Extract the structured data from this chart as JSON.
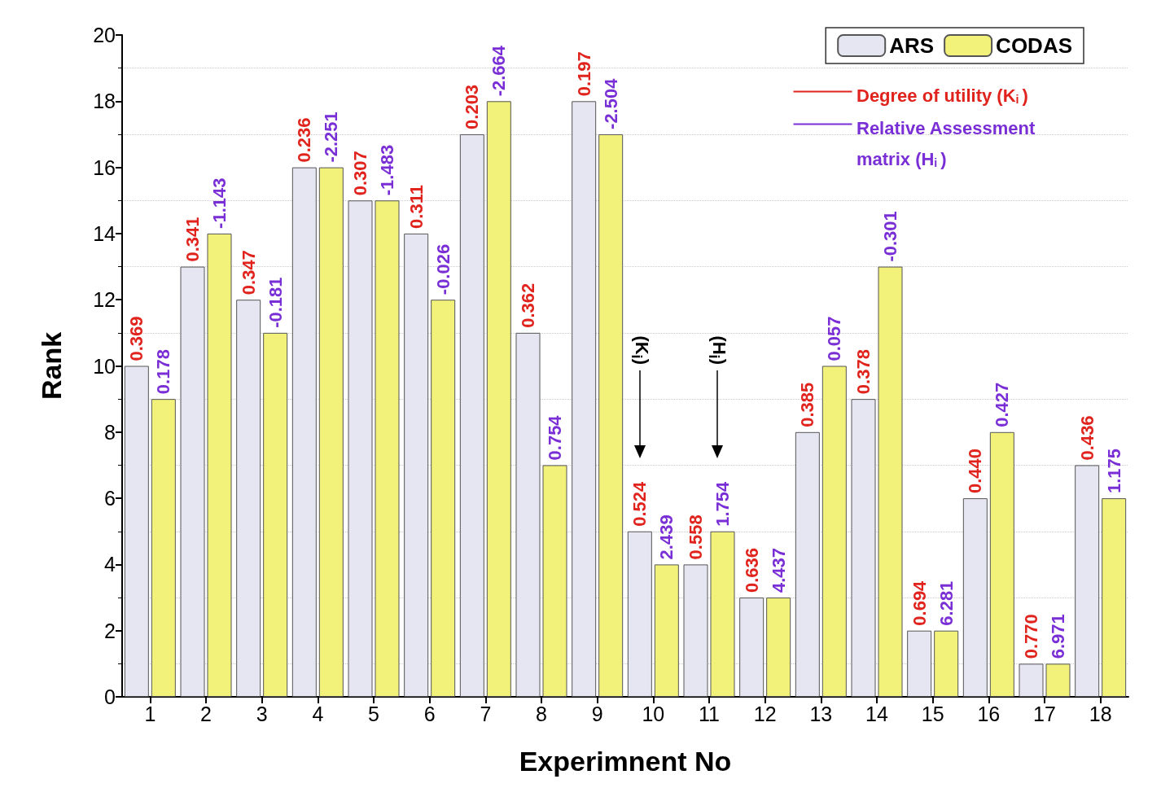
{
  "chart_data": {
    "type": "bar",
    "xlabel": "Experimnent No",
    "ylabel": "Rank",
    "categories": [
      "1",
      "2",
      "3",
      "4",
      "5",
      "6",
      "7",
      "8",
      "9",
      "10",
      "11",
      "12",
      "13",
      "14",
      "15",
      "16",
      "17",
      "18"
    ],
    "series": [
      {
        "name": "ARS",
        "color": "#e6e6f2",
        "values": [
          10,
          13,
          12,
          16,
          15,
          14,
          17,
          11,
          18,
          5,
          4,
          3,
          8,
          9,
          2,
          6,
          1,
          7
        ]
      },
      {
        "name": "CODAS",
        "color": "#f2f27a",
        "values": [
          9,
          14,
          11,
          16,
          15,
          12,
          18,
          7,
          17,
          4,
          5,
          3,
          10,
          13,
          2,
          8,
          1,
          6
        ]
      }
    ],
    "ylim": [
      0,
      20
    ],
    "yticks": [
      0,
      2,
      4,
      6,
      8,
      10,
      12,
      14,
      16,
      18,
      20
    ],
    "grid": "y",
    "legend": "top right",
    "annotations": [
      "Degree of utility (K$_{i}$)",
      "Relative Assessment matrix (H$_{i}$)",
      "(K$_{i}$)",
      "(H$_{i}$)",
      {
        "text": "0.369",
        "x": "1",
        "y": 10
      },
      {
        "text": "0.341",
        "x": "2",
        "y": 13
      },
      {
        "text": "0.347",
        "x": "3",
        "y": 12
      },
      {
        "text": "0.236",
        "x": "4",
        "y": 16
      },
      {
        "text": "0.307",
        "x": "5",
        "y": 15
      },
      {
        "text": "0.311",
        "x": "6",
        "y": 14
      },
      {
        "text": "0.203",
        "x": "7",
        "y": 17
      },
      {
        "text": "0.362",
        "x": "8",
        "y": 11
      },
      {
        "text": "0.197",
        "x": "9",
        "y": 18
      },
      {
        "text": "0.524",
        "x": "10",
        "y": 5
      },
      {
        "text": "0.558",
        "x": "11",
        "y": 4
      },
      {
        "text": "0.636",
        "x": "12",
        "y": 3
      },
      {
        "text": "0.385",
        "x": "13",
        "y": 8
      },
      {
        "text": "0.378",
        "x": "14",
        "y": 9
      },
      {
        "text": "0.694",
        "x": "15",
        "y": 2
      },
      {
        "text": "0.440",
        "x": "16",
        "y": 6
      },
      {
        "text": "0.770",
        "x": "17",
        "y": 1
      },
      {
        "text": "0.436",
        "x": "18",
        "y": 7
      },
      {
        "text": "0.178",
        "x": "1",
        "y": 9
      },
      {
        "text": "-1.143",
        "x": "2",
        "y": 14
      },
      {
        "text": "-0.181",
        "x": "3",
        "y": 11
      },
      {
        "text": "-2.251",
        "x": "4",
        "y": 16
      },
      {
        "text": "-1.483",
        "x": "5",
        "y": 15
      },
      {
        "text": "-0.026",
        "x": "6",
        "y": 12
      },
      {
        "text": "-2.664",
        "x": "7",
        "y": 18
      },
      {
        "text": "0.754",
        "x": "8",
        "y": 7
      },
      {
        "text": "-2.504",
        "x": "9",
        "y": 17
      },
      {
        "text": "2.439",
        "x": "10",
        "y": 4
      },
      {
        "text": "1.754",
        "x": "11",
        "y": 5
      },
      {
        "text": "4.437",
        "x": "12",
        "y": 3
      },
      {
        "text": "0.057",
        "x": "13",
        "y": 10
      },
      {
        "text": "-0.301",
        "x": "14",
        "y": 13
      },
      {
        "text": "6.281",
        "x": "15",
        "y": 2
      },
      {
        "text": "0.427",
        "x": "16",
        "y": 8
      },
      {
        "text": "6.971",
        "x": "17",
        "y": 1
      },
      {
        "text": "1.175",
        "x": "18",
        "y": 6
      }
    ]
  }
}
